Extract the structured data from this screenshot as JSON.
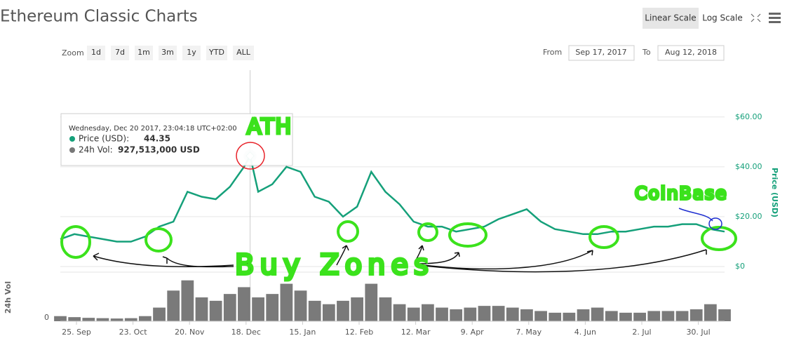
{
  "chart_data": [
    {
      "type": "line",
      "title": "Ethereum Classic Charts",
      "y_label": "Price (USD)",
      "color": "#15a07a",
      "x": [
        "2017-09-17",
        "2017-09-24",
        "2017-10-01",
        "2017-10-08",
        "2017-10-15",
        "2017-10-22",
        "2017-10-29",
        "2017-11-05",
        "2017-11-12",
        "2017-11-19",
        "2017-11-26",
        "2017-12-03",
        "2017-12-10",
        "2017-12-17",
        "2017-12-20",
        "2017-12-24",
        "2017-12-31",
        "2018-01-07",
        "2018-01-14",
        "2018-01-21",
        "2018-01-28",
        "2018-02-04",
        "2018-02-11",
        "2018-02-18",
        "2018-02-25",
        "2018-03-04",
        "2018-03-11",
        "2018-03-18",
        "2018-03-25",
        "2018-04-01",
        "2018-04-08",
        "2018-04-15",
        "2018-04-22",
        "2018-04-29",
        "2018-05-06",
        "2018-05-13",
        "2018-05-20",
        "2018-05-27",
        "2018-06-03",
        "2018-06-10",
        "2018-06-17",
        "2018-06-24",
        "2018-07-01",
        "2018-07-08",
        "2018-07-15",
        "2018-07-22",
        "2018-07-29",
        "2018-08-05",
        "2018-08-12"
      ],
      "values": [
        11,
        13,
        12,
        11,
        10,
        10,
        12,
        16,
        18,
        30,
        28,
        27,
        32,
        40,
        44.35,
        30,
        33,
        40,
        38,
        28,
        26,
        20,
        24,
        38,
        30,
        25,
        18,
        16,
        16,
        14,
        15,
        16,
        19,
        21,
        23,
        18,
        15,
        14,
        13,
        13,
        14,
        14,
        15,
        16,
        16,
        17,
        17,
        15,
        14
      ],
      "xlim": [
        "2017-09-17",
        "2018-08-12"
      ],
      "ylim": [
        0,
        65
      ],
      "yticks": [
        {
          "value": 0,
          "label": "$0"
        },
        {
          "value": 20,
          "label": "$20.00"
        },
        {
          "value": 40,
          "label": "$40.00"
        },
        {
          "value": 60,
          "label": "$60.00"
        }
      ],
      "grid": true,
      "tooltip": {
        "date": "Wednesday, Dec 20 2017, 23:04:18 UTC+02:00",
        "x": "2017-12-20",
        "price_label": "Price (USD):",
        "price": 44.35,
        "volume_label": "24h Vol:",
        "volume": {
          "value": 927513000,
          "label": "927,513,000 USD"
        }
      },
      "annotations": [
        {
          "text": "ATH",
          "color": "#e8232a"
        },
        {
          "text": "Buy Zones",
          "color": "#111111"
        },
        {
          "text": "CoinBase",
          "color": "#1f2fd0"
        }
      ]
    },
    {
      "type": "bar",
      "y_label": "24h Vol",
      "color": "#7a7a7a",
      "x": [
        "2017-09-17",
        "2017-09-24",
        "2017-10-01",
        "2017-10-08",
        "2017-10-15",
        "2017-10-22",
        "2017-10-29",
        "2017-11-05",
        "2017-11-12",
        "2017-11-19",
        "2017-11-26",
        "2017-12-03",
        "2017-12-10",
        "2017-12-17",
        "2017-12-24",
        "2017-12-31",
        "2018-01-07",
        "2018-01-14",
        "2018-01-21",
        "2018-01-28",
        "2018-02-04",
        "2018-02-11",
        "2018-02-18",
        "2018-02-25",
        "2018-03-04",
        "2018-03-11",
        "2018-03-18",
        "2018-03-25",
        "2018-04-01",
        "2018-04-08",
        "2018-04-15",
        "2018-04-22",
        "2018-04-29",
        "2018-05-06",
        "2018-05-13",
        "2018-05-20",
        "2018-05-27",
        "2018-06-03",
        "2018-06-10",
        "2018-06-17",
        "2018-06-24",
        "2018-07-01",
        "2018-07-08",
        "2018-07-15",
        "2018-07-22",
        "2018-07-29",
        "2018-08-05",
        "2018-08-12"
      ],
      "values": [
        150000000,
        120000000,
        100000000,
        90000000,
        80000000,
        90000000,
        150000000,
        400000000,
        900000000,
        1200000000,
        700000000,
        600000000,
        800000000,
        1000000000,
        700000000,
        800000000,
        1100000000,
        900000000,
        600000000,
        500000000,
        600000000,
        700000000,
        1100000000,
        700000000,
        500000000,
        400000000,
        500000000,
        400000000,
        350000000,
        400000000,
        450000000,
        450000000,
        400000000,
        350000000,
        300000000,
        250000000,
        250000000,
        350000000,
        400000000,
        300000000,
        250000000,
        250000000,
        300000000,
        300000000,
        300000000,
        350000000,
        500000000,
        350000000
      ],
      "xlim": [
        "2017-09-17",
        "2018-08-12"
      ],
      "ylim": [
        0,
        1400000000
      ],
      "yticks": [
        0
      ],
      "xticks": [
        {
          "value": "2017-09-25",
          "label": "25. Sep"
        },
        {
          "value": "2017-10-23",
          "label": "23. Oct"
        },
        {
          "value": "2017-11-20",
          "label": "20. Nov"
        },
        {
          "value": "2017-12-18",
          "label": "18. Dec"
        },
        {
          "value": "2018-01-15",
          "label": "15. Jan"
        },
        {
          "value": "2018-02-12",
          "label": "12. Feb"
        },
        {
          "value": "2018-03-12",
          "label": "12. Mar"
        },
        {
          "value": "2018-04-09",
          "label": "9. Apr"
        },
        {
          "value": "2018-05-07",
          "label": "7. May"
        },
        {
          "value": "2018-06-04",
          "label": "4. Jun"
        },
        {
          "value": "2018-07-02",
          "label": "2. Jul"
        },
        {
          "value": "2018-07-30",
          "label": "30. Jul"
        }
      ]
    }
  ],
  "toolbar": {
    "zoom_label": "Zoom",
    "zoom_buttons": [
      "1d",
      "7d",
      "1m",
      "3m",
      "1y",
      "YTD",
      "ALL"
    ],
    "from_label": "From",
    "from": "Sep 17, 2017",
    "to_label": "To",
    "to": "Aug 12, 2018",
    "scales": [
      "Linear Scale",
      "Log Scale"
    ]
  }
}
